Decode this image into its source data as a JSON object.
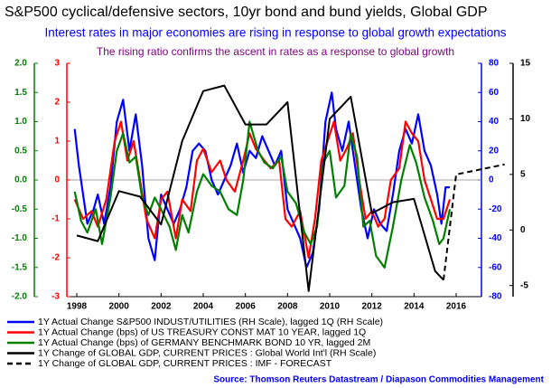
{
  "chart_data": {
    "type": "line",
    "title": "S&P500 cyclical/defensive sectors, 10yr bond and bund yields, Global GDP",
    "subtitle": "Interest rates in major economies are rising in response to global growth expectations",
    "annotation": "The rising ratio confirms the ascent in rates as a response to global growth",
    "source": "Source: Thomson Reuters Datastream / Diapason Commodities Management",
    "xlim": [
      1997.7,
      2017.2
    ],
    "xticks": [
      1998,
      2000,
      2002,
      2004,
      2006,
      2008,
      2010,
      2012,
      2014,
      2016
    ],
    "ylim": [
      -3,
      3
    ],
    "yticks": [
      3,
      2,
      1,
      0,
      -1,
      -2,
      -3
    ],
    "y2lim": [
      -80,
      80
    ],
    "y2ticks": [
      80,
      60,
      40,
      20,
      0,
      -20,
      -40,
      -60,
      -80
    ],
    "y3lim": [
      -2,
      2
    ],
    "y3ticks": [
      {
        "value": 2,
        "label": "2.0"
      },
      1.5,
      {
        "value": 1,
        "label": "1.0"
      },
      0.5,
      {
        "value": 0,
        "label": "0.0"
      },
      -0.5,
      {
        "value": -1,
        "label": "-1.0"
      },
      -1.5,
      {
        "value": -2,
        "label": "-2.0"
      }
    ],
    "y4lim": [
      -6,
      15
    ],
    "y4ticks": [
      15,
      10,
      5,
      0,
      -5
    ],
    "series": [
      {
        "name": "1Y Actual Change S&P500 INDUST/UTILITIES (RH Scale), lagged 1Q (RH Scale)",
        "color": "#0000ff",
        "axis": "y2",
        "x": [
          1997.9,
          1998.1,
          1998.3,
          1998.5,
          1998.8,
          1999.0,
          1999.3,
          1999.6,
          1999.9,
          2000.2,
          2000.5,
          2000.8,
          2001.1,
          2001.4,
          2001.7,
          2002.0,
          2002.3,
          2002.6,
          2002.9,
          2003.2,
          2003.5,
          2003.8,
          2004.1,
          2004.4,
          2004.7,
          2005.0,
          2005.3,
          2005.6,
          2005.9,
          2006.2,
          2006.5,
          2006.8,
          2007.1,
          2007.4,
          2007.7,
          2008.0,
          2008.3,
          2008.6,
          2008.9,
          2009.2,
          2009.5,
          2009.8,
          2010.1,
          2010.3,
          2010.6,
          2010.9,
          2011.2,
          2011.5,
          2011.8,
          2012.1,
          2012.4,
          2012.7,
          2013.0,
          2013.3,
          2013.6,
          2013.9,
          2014.2,
          2014.5,
          2014.8,
          2015.1,
          2015.3,
          2015.5,
          2015.7
        ],
        "values": [
          35,
          10,
          -10,
          -30,
          -20,
          -10,
          -30,
          -5,
          40,
          55,
          20,
          45,
          10,
          -40,
          -55,
          -10,
          -20,
          -30,
          -20,
          -5,
          20,
          25,
          20,
          0,
          -10,
          0,
          10,
          25,
          5,
          20,
          15,
          30,
          20,
          10,
          20,
          -20,
          -30,
          -40,
          -60,
          -50,
          -20,
          40,
          60,
          35,
          20,
          40,
          10,
          -20,
          -40,
          -20,
          -30,
          -35,
          -10,
          20,
          35,
          25,
          45,
          20,
          10,
          -10,
          -30,
          -5,
          -5
        ]
      },
      {
        "name": "1Y Actual Change (bps) of US TREASURY CONST MAT 10 YEAR, lagged 1Q",
        "color": "#ff0000",
        "axis": "y",
        "x": [
          1997.9,
          1998.3,
          1998.7,
          1999.0,
          1999.4,
          1999.8,
          2000.1,
          2000.4,
          2000.7,
          2001.0,
          2001.3,
          2001.7,
          2002.0,
          2002.3,
          2002.7,
          2003.0,
          2003.4,
          2003.7,
          2004.0,
          2004.4,
          2004.8,
          2005.1,
          2005.5,
          2005.9,
          2006.2,
          2006.5,
          2006.9,
          2007.2,
          2007.6,
          2007.9,
          2008.2,
          2008.6,
          2009.0,
          2009.3,
          2009.6,
          2009.9,
          2010.2,
          2010.5,
          2010.8,
          2011.1,
          2011.4,
          2011.7,
          2012.0,
          2012.3,
          2012.6,
          2012.9,
          2013.3,
          2013.6,
          2013.9,
          2014.2,
          2014.5,
          2014.8,
          2015.1,
          2015.4,
          2015.7
        ],
        "values": [
          -0.5,
          -1,
          -0.8,
          -1.2,
          -0.5,
          1,
          1.5,
          0.5,
          1,
          0,
          -1,
          -1.5,
          -0.5,
          -0.3,
          -1.5,
          -0.5,
          -0.8,
          0.5,
          0.8,
          0.2,
          0.5,
          0,
          -0.3,
          0.5,
          1.2,
          0.8,
          0.5,
          0.3,
          0.5,
          -1,
          -1.2,
          -0.8,
          -2,
          -1,
          0.5,
          1,
          1.5,
          0.5,
          0.8,
          1.2,
          0,
          -1,
          -0.8,
          -1.2,
          -1,
          0,
          0.3,
          1.5,
          1.2,
          1,
          0,
          -0.5,
          -1,
          -1,
          -0.5
        ]
      },
      {
        "name": "1Y Actual Change (bps) of GERMANY BENCHMARK BOND 10 YR, lagged 2M",
        "color": "#008000",
        "axis": "y3",
        "x": [
          1997.9,
          1998.2,
          1998.5,
          1998.9,
          1999.2,
          1999.6,
          1999.9,
          2000.2,
          2000.5,
          2000.8,
          2001.1,
          2001.4,
          2001.7,
          2002.0,
          2002.4,
          2002.7,
          2003.0,
          2003.3,
          2003.7,
          2004.0,
          2004.4,
          2004.8,
          2005.2,
          2005.6,
          2005.9,
          2006.2,
          2006.6,
          2006.9,
          2007.3,
          2007.7,
          2008.0,
          2008.4,
          2008.8,
          2009.1,
          2009.4,
          2009.7,
          2010.0,
          2010.3,
          2010.7,
          2011.0,
          2011.3,
          2011.6,
          2011.9,
          2012.2,
          2012.6,
          2013.0,
          2013.4,
          2013.8,
          2014.1,
          2014.5,
          2014.9,
          2015.2,
          2015.4,
          2015.7
        ],
        "values": [
          -0.2,
          -0.7,
          -0.9,
          -0.5,
          -1.1,
          -0.3,
          0.5,
          0.8,
          0.3,
          0.4,
          -0.3,
          -0.6,
          -0.3,
          -0.5,
          -0.8,
          -1.2,
          -0.6,
          -0.9,
          -0.2,
          0.1,
          -0.1,
          -0.2,
          -0.5,
          -0.6,
          0,
          1,
          0.5,
          0.3,
          0.2,
          0.4,
          -0.2,
          -0.4,
          -0.9,
          -1.1,
          -0.8,
          0.3,
          0.5,
          -0.3,
          -0.1,
          0.8,
          0.4,
          -0.8,
          -0.7,
          -1.3,
          -1.5,
          -0.8,
          0,
          0.6,
          0.3,
          -0.3,
          -0.7,
          -1.1,
          -1,
          -0.5
        ]
      },
      {
        "name": "1Y Change of GLOBAL GDP, CURRENT PRICES : Global World Int'l (RH Scale)",
        "color": "#000000",
        "axis": "y4",
        "style": "solid",
        "x": [
          1998,
          1999,
          2000,
          2001,
          2002,
          2003,
          2004,
          2005,
          2006,
          2007,
          2008,
          2009,
          2010,
          2011,
          2012,
          2013,
          2014,
          2015,
          2015.4
        ],
        "values": [
          -0.5,
          -1,
          3.5,
          3,
          0.5,
          8,
          12.5,
          13,
          9.5,
          9.5,
          11.5,
          -5.5,
          10,
          12,
          1.5,
          2.5,
          2.8,
          -3.7,
          -4.5
        ]
      },
      {
        "name": "1Y Change of GLOBAL GDP, CURRENT PRICES : IMF - FORECAST",
        "color": "#000000",
        "axis": "y4",
        "style": "dashed",
        "x": [
          2015.4,
          2016,
          2018.3
        ],
        "values": [
          -4.5,
          5,
          5.9
        ]
      }
    ]
  }
}
